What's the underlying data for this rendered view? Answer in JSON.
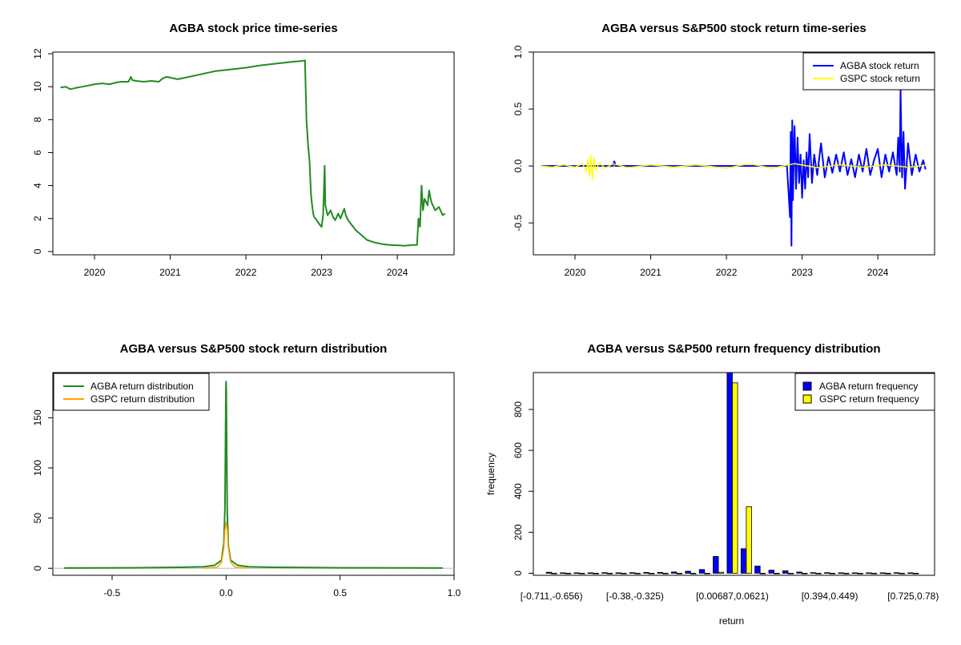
{
  "chart_data": [
    {
      "id": "p1",
      "type": "line",
      "title": "AGBA stock price time-series",
      "xlabel": "",
      "ylabel": "",
      "xlim": [
        2019.45,
        2024.75
      ],
      "ylim": [
        -0.2,
        12.1
      ],
      "x_ticks": [
        {
          "value": 2020,
          "label": "2020"
        },
        {
          "value": 2021,
          "label": "2021"
        },
        {
          "value": 2022,
          "label": "2022"
        },
        {
          "value": 2023,
          "label": "2023"
        },
        {
          "value": 2024,
          "label": "2024"
        }
      ],
      "y_ticks": [
        {
          "value": 0,
          "label": "0"
        },
        {
          "value": 2,
          "label": "2"
        },
        {
          "value": 4,
          "label": "4"
        },
        {
          "value": 6,
          "label": "6"
        },
        {
          "value": 8,
          "label": "8"
        },
        {
          "value": 10,
          "label": "10"
        },
        {
          "value": 12,
          "label": "12"
        }
      ],
      "series": [
        {
          "name": "AGBA stock price",
          "color": "#228B22",
          "x": [
            2019.55,
            2019.62,
            2019.68,
            2019.78,
            2019.9,
            2020.0,
            2020.1,
            2020.2,
            2020.28,
            2020.35,
            2020.45,
            2020.48,
            2020.5,
            2020.55,
            2020.65,
            2020.75,
            2020.85,
            2020.9,
            2020.95,
            2021.0,
            2021.05,
            2021.1,
            2021.2,
            2021.4,
            2021.6,
            2021.8,
            2022.0,
            2022.2,
            2022.4,
            2022.6,
            2022.72,
            2022.78,
            2022.8,
            2022.82,
            2022.84,
            2022.85,
            2022.86,
            2022.87,
            2022.88,
            2022.89,
            2022.9,
            2022.92,
            2022.95,
            2022.98,
            2023.0,
            2023.02,
            2023.04,
            2023.05,
            2023.08,
            2023.12,
            2023.15,
            2023.18,
            2023.22,
            2023.25,
            2023.3,
            2023.32,
            2023.35,
            2023.4,
            2023.45,
            2023.5,
            2023.55,
            2023.6,
            2023.7,
            2023.8,
            2023.9,
            2024.0,
            2024.1,
            2024.2,
            2024.26,
            2024.28,
            2024.3,
            2024.32,
            2024.34,
            2024.36,
            2024.4,
            2024.42,
            2024.45,
            2024.5,
            2024.55,
            2024.6,
            2024.63
          ],
          "y": [
            9.95,
            10.0,
            9.85,
            9.95,
            10.05,
            10.15,
            10.2,
            10.15,
            10.25,
            10.3,
            10.3,
            10.6,
            10.4,
            10.35,
            10.3,
            10.35,
            10.3,
            10.5,
            10.6,
            10.55,
            10.5,
            10.45,
            10.55,
            10.75,
            10.95,
            11.05,
            11.15,
            11.3,
            11.4,
            11.5,
            11.55,
            11.6,
            8.0,
            6.5,
            5.5,
            4.5,
            3.5,
            3.0,
            2.6,
            2.3,
            2.1,
            2.0,
            1.8,
            1.6,
            1.5,
            2.2,
            5.2,
            2.8,
            2.2,
            2.5,
            2.1,
            1.9,
            2.3,
            2.0,
            2.6,
            2.2,
            1.9,
            1.6,
            1.3,
            1.1,
            0.9,
            0.7,
            0.55,
            0.45,
            0.4,
            0.38,
            0.35,
            0.4,
            0.4,
            2.0,
            1.5,
            4.0,
            2.5,
            3.2,
            2.8,
            3.7,
            3.0,
            2.5,
            2.7,
            2.2,
            2.3
          ]
        }
      ]
    },
    {
      "id": "p2",
      "type": "line",
      "title": "AGBA versus S&P500 stock return time-series",
      "xlabel": "",
      "ylabel": "",
      "xlim": [
        2019.45,
        2024.75
      ],
      "ylim": [
        -0.78,
        1.0
      ],
      "x_ticks": [
        {
          "value": 2020,
          "label": "2020"
        },
        {
          "value": 2021,
          "label": "2021"
        },
        {
          "value": 2022,
          "label": "2022"
        },
        {
          "value": 2023,
          "label": "2023"
        },
        {
          "value": 2024,
          "label": "2024"
        }
      ],
      "y_ticks": [
        {
          "value": -0.5,
          "label": "-0.5"
        },
        {
          "value": 0.0,
          "label": "0.0"
        },
        {
          "value": 0.5,
          "label": "0.5"
        },
        {
          "value": 1.0,
          "label": "1.0"
        }
      ],
      "legend": {
        "position": "top-right",
        "entries": [
          {
            "label": "AGBA stock return",
            "color": "#0000FF"
          },
          {
            "label": "GSPC stock return",
            "color": "#FFFF00"
          }
        ]
      },
      "series": [
        {
          "name": "AGBA stock return",
          "color": "#0000FF",
          "x": [
            2019.55,
            2020.0,
            2020.5,
            2020.52,
            2020.54,
            2021.0,
            2021.5,
            2022.0,
            2022.5,
            2022.8,
            2022.84,
            2022.85,
            2022.86,
            2022.87,
            2022.88,
            2022.89,
            2022.9,
            2022.92,
            2022.94,
            2022.96,
            2022.98,
            2023.0,
            2023.02,
            2023.04,
            2023.06,
            2023.08,
            2023.1,
            2023.13,
            2023.16,
            2023.2,
            2023.25,
            2023.3,
            2023.35,
            2023.4,
            2023.45,
            2023.5,
            2023.55,
            2023.6,
            2023.65,
            2023.7,
            2023.75,
            2023.8,
            2023.85,
            2023.9,
            2023.95,
            2024.0,
            2024.05,
            2024.1,
            2024.15,
            2024.2,
            2024.25,
            2024.27,
            2024.29,
            2024.3,
            2024.32,
            2024.34,
            2024.36,
            2024.4,
            2024.45,
            2024.5,
            2024.55,
            2024.6,
            2024.63
          ],
          "y": [
            0.0,
            0.0,
            0.0,
            0.04,
            0.0,
            0.0,
            0.0,
            0.0,
            0.0,
            0.0,
            -0.45,
            0.3,
            -0.7,
            0.4,
            -0.3,
            0.1,
            0.35,
            -0.2,
            0.25,
            -0.15,
            0.1,
            -0.28,
            0.05,
            -0.2,
            0.12,
            -0.1,
            0.28,
            -0.15,
            0.1,
            -0.08,
            0.2,
            -0.1,
            0.08,
            -0.06,
            0.1,
            -0.05,
            0.12,
            -0.08,
            0.06,
            -0.1,
            0.1,
            -0.05,
            0.15,
            -0.08,
            0.05,
            0.15,
            -0.1,
            0.1,
            -0.05,
            0.12,
            -0.08,
            0.25,
            -0.05,
            0.68,
            -0.1,
            0.3,
            -0.2,
            0.2,
            -0.08,
            0.1,
            -0.05,
            0.05,
            -0.03
          ]
        },
        {
          "name": "GSPC stock return",
          "color": "#FFFF00",
          "x": [
            2019.55,
            2019.7,
            2019.85,
            2020.0,
            2020.1,
            2020.15,
            2020.17,
            2020.19,
            2020.21,
            2020.23,
            2020.25,
            2020.28,
            2020.32,
            2020.4,
            2020.5,
            2020.7,
            2021.0,
            2021.3,
            2021.6,
            2022.0,
            2022.3,
            2022.6,
            2022.9,
            2023.2,
            2023.5,
            2023.8,
            2024.1,
            2024.4,
            2024.63
          ],
          "y": [
            0.0,
            -0.01,
            0.01,
            -0.01,
            0.02,
            -0.05,
            0.06,
            -0.09,
            0.09,
            -0.12,
            0.07,
            -0.04,
            0.03,
            -0.02,
            0.02,
            -0.015,
            0.01,
            -0.01,
            0.01,
            -0.02,
            0.02,
            -0.02,
            0.02,
            -0.015,
            0.01,
            -0.01,
            0.01,
            -0.01,
            0.005
          ]
        }
      ]
    },
    {
      "id": "p3",
      "type": "line",
      "title": "AGBA versus S&P500 stock return distribution",
      "xlabel": "",
      "ylabel": "",
      "xlim": [
        -0.76,
        1.0
      ],
      "ylim": [
        -7,
        195
      ],
      "x_ticks": [
        {
          "value": -0.5,
          "label": "-0.5"
        },
        {
          "value": 0.0,
          "label": "0.0"
        },
        {
          "value": 0.5,
          "label": "0.5"
        },
        {
          "value": 1.0,
          "label": "1.0"
        }
      ],
      "y_ticks": [
        {
          "value": 0,
          "label": "0"
        },
        {
          "value": 50,
          "label": "50"
        },
        {
          "value": 100,
          "label": "100"
        },
        {
          "value": 150,
          "label": "150"
        }
      ],
      "legend": {
        "position": "top-left",
        "entries": [
          {
            "label": "AGBA return distribution",
            "color": "#228B22"
          },
          {
            "label": "GSPC return distribution",
            "color": "#FFA500"
          }
        ]
      },
      "series": [
        {
          "name": "AGBA return distribution",
          "color": "#228B22",
          "x": [
            -0.71,
            -0.4,
            -0.2,
            -0.1,
            -0.05,
            -0.02,
            -0.01,
            -0.005,
            -0.003,
            -0.001,
            0.0,
            0.001,
            0.003,
            0.005,
            0.01,
            0.02,
            0.05,
            0.1,
            0.2,
            0.5,
            0.95
          ],
          "y": [
            0.3,
            0.5,
            1.0,
            1.5,
            3.0,
            8.0,
            25.0,
            60.0,
            120.0,
            180.0,
            186.0,
            175.0,
            110.0,
            55.0,
            22.0,
            8.0,
            3.0,
            1.5,
            1.0,
            0.5,
            0.3
          ]
        },
        {
          "name": "GSPC return distribution",
          "color": "#FFA500",
          "x": [
            -0.1,
            -0.04,
            -0.02,
            -0.01,
            -0.005,
            0.0,
            0.005,
            0.01,
            0.02,
            0.04,
            0.1
          ],
          "y": [
            0.0,
            1.0,
            6.0,
            20.0,
            38.0,
            46.0,
            38.0,
            20.0,
            6.0,
            1.0,
            0.0
          ]
        }
      ]
    },
    {
      "id": "p4",
      "type": "bar",
      "title": "AGBA versus S&P500 return frequency distribution",
      "xlabel": "return",
      "ylabel": "frequency",
      "ylim": [
        -10,
        980
      ],
      "y_ticks": [
        {
          "value": 0,
          "label": "0"
        },
        {
          "value": 200,
          "label": "200"
        },
        {
          "value": 400,
          "label": "400"
        },
        {
          "value": 600,
          "label": "600"
        },
        {
          "value": 800,
          "label": "800"
        }
      ],
      "x_tick_labels": [
        {
          "bin": 0,
          "label": "[-0.711,-0.656)"
        },
        {
          "bin": 6,
          "label": "[-0.38,-0.325)"
        },
        {
          "bin": 13,
          "label": "[0.00687,0.0621)"
        },
        {
          "bin": 20,
          "label": "[0.394,0.449)"
        },
        {
          "bin": 26,
          "label": "[0.725,0.78)"
        }
      ],
      "bin_count": 27,
      "legend": {
        "position": "top-right",
        "entries": [
          {
            "label": "AGBA return frequency",
            "color": "#0000FF"
          },
          {
            "label": "GSPC return frequency",
            "color": "#FFFF00"
          }
        ]
      },
      "series": [
        {
          "name": "AGBA return frequency",
          "color": "#0000FF",
          "values": [
            5,
            2,
            2,
            2,
            3,
            2,
            3,
            4,
            4,
            6,
            10,
            18,
            82,
            980,
            120,
            35,
            15,
            12,
            6,
            3,
            3,
            2,
            2,
            2,
            2,
            3,
            2
          ]
        },
        {
          "name": "GSPC return frequency",
          "color": "#FFFF00",
          "values": [
            0,
            0,
            0,
            0,
            0,
            0,
            0,
            0,
            0,
            0,
            0,
            0,
            5,
            930,
            325,
            0,
            0,
            0,
            0,
            0,
            0,
            0,
            0,
            0,
            0,
            0,
            0
          ]
        }
      ]
    }
  ]
}
